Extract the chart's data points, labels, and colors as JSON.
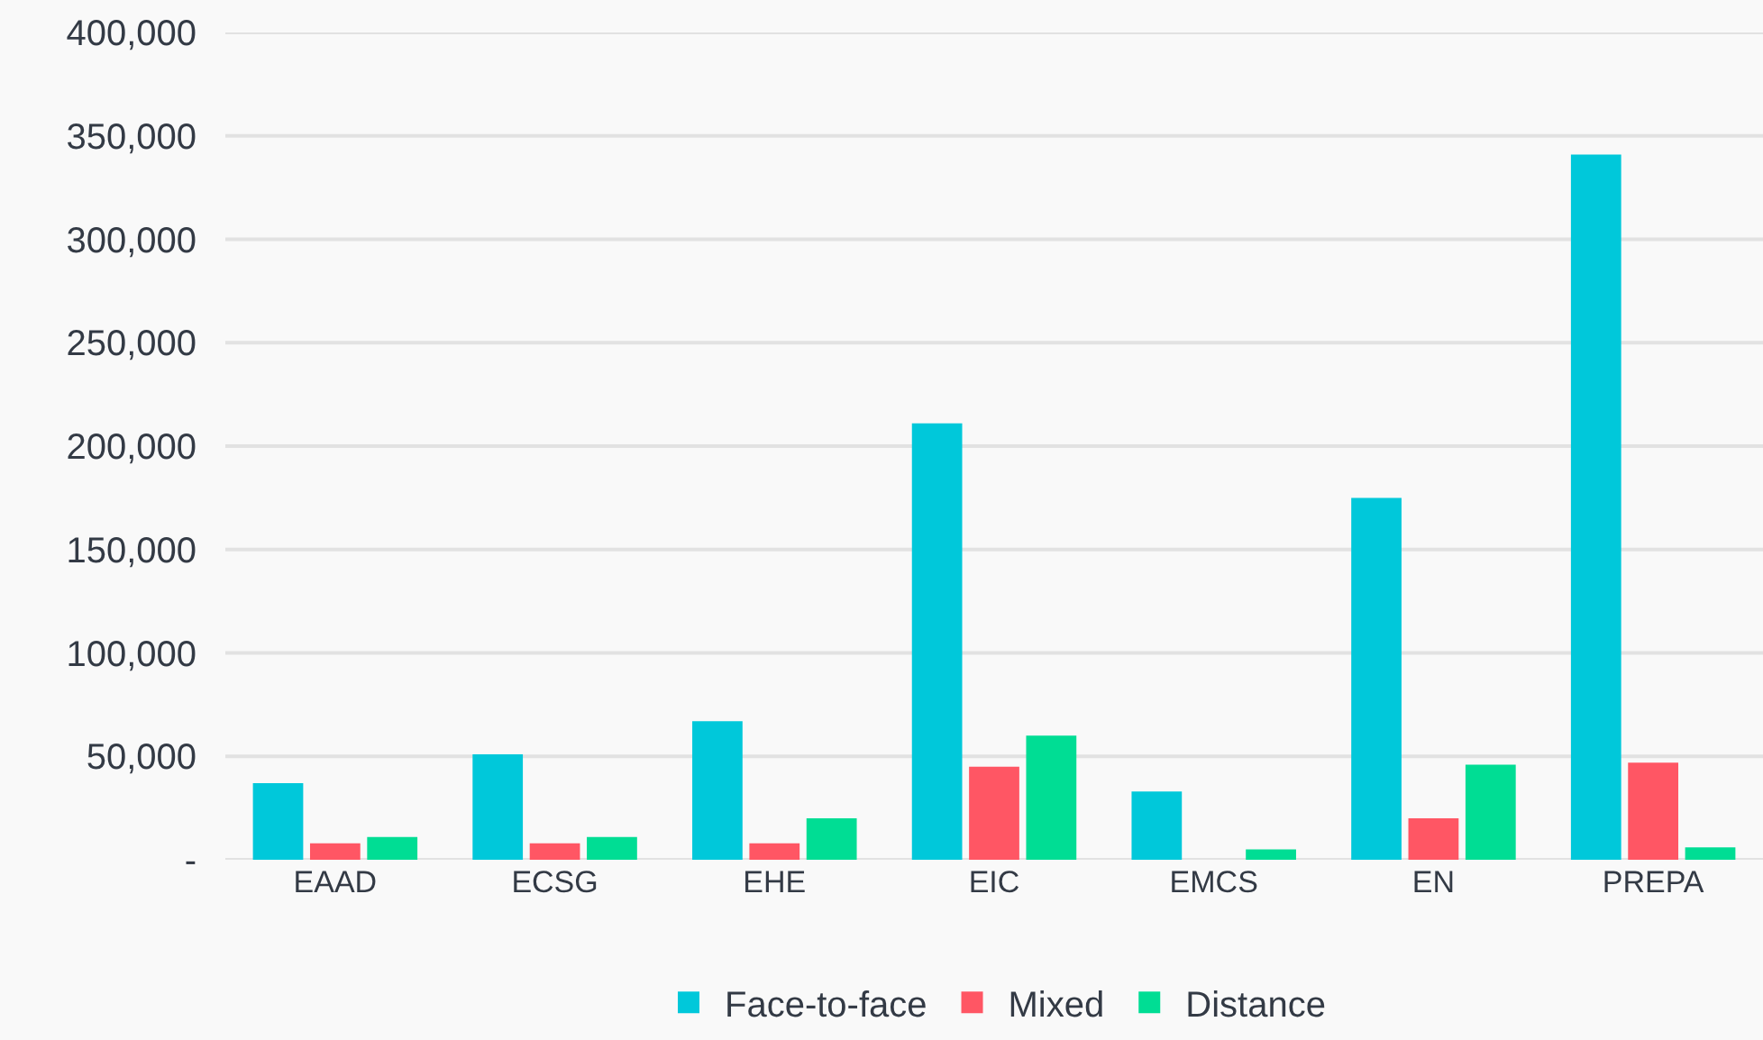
{
  "chart_data": {
    "type": "bar",
    "categories": [
      "EAAD",
      "ECSG",
      "EHE",
      "EIC",
      "EMCS",
      "EN",
      "PREPA"
    ],
    "series": [
      {
        "name": "Face-to-face",
        "color": "#00c8da",
        "values": [
          37000,
          51000,
          67000,
          211000,
          33000,
          175000,
          341000
        ]
      },
      {
        "name": "Mixed",
        "color": "#ff5664",
        "values": [
          8000,
          8000,
          8000,
          45000,
          0,
          20000,
          47000
        ]
      },
      {
        "name": "Distance",
        "color": "#00dd94",
        "values": [
          11000,
          11000,
          20000,
          60000,
          5000,
          46000,
          6000
        ]
      }
    ],
    "ylim": [
      0,
      400000
    ],
    "yticks": [
      {
        "value": 0,
        "label": "-"
      },
      {
        "value": 50000,
        "label": "50,000"
      },
      {
        "value": 100000,
        "label": "100,000"
      },
      {
        "value": 150000,
        "label": "150,000"
      },
      {
        "value": 200000,
        "label": "200,000"
      },
      {
        "value": 250000,
        "label": "250,000"
      },
      {
        "value": 300000,
        "label": "300,000"
      },
      {
        "value": 350000,
        "label": "350,000"
      },
      {
        "value": 400000,
        "label": "400,000"
      }
    ],
    "grid": "y",
    "legend": "bottom"
  }
}
